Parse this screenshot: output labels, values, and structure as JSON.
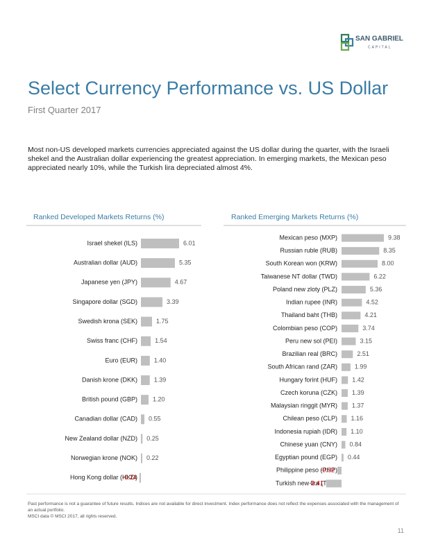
{
  "header": {
    "logo": {
      "name": "SAN GABRIEL",
      "tagline": "CAPITAL"
    },
    "title": "Select Currency Performance vs. US Dollar",
    "subtitle": "First Quarter 2017"
  },
  "intro": "Most non-US developed markets currencies appreciated against the US dollar during the quarter, with the Israeli shekel and the Australian dollar experiencing the greatest appreciation. In emerging markets, the Mexican peso appreciated nearly 10%, while the Turkish lira depreciated almost 4%.",
  "chart_data": [
    {
      "type": "bar",
      "orientation": "horizontal",
      "title": "Ranked Developed Markets Returns (%)",
      "color": "#bfbfbf",
      "negative_label_color": "#c00000",
      "categories": [
        "Israel shekel (ILS)",
        "Australian dollar (AUD)",
        "Japanese yen (JPY)",
        "Singapore dollar (SGD)",
        "Swedish krona (SEK)",
        "Swiss franc (CHF)",
        "Euro (EUR)",
        "Danish krone (DKK)",
        "British pound (GBP)",
        "Canadian dollar (CAD)",
        "New Zealand dollar (NZD)",
        "Norwegian krone (NOK)",
        "Hong Kong dollar (HKD)"
      ],
      "values": [
        6.01,
        5.35,
        4.67,
        3.39,
        1.75,
        1.54,
        1.4,
        1.39,
        1.2,
        0.55,
        0.25,
        0.22,
        -0.24
      ],
      "value_labels": [
        "6.01",
        "5.35",
        "4.67",
        "3.39",
        "1.75",
        "1.54",
        "1.40",
        "1.39",
        "1.20",
        "0.55",
        "0.25",
        "0.22",
        "-0.24"
      ]
    },
    {
      "type": "bar",
      "orientation": "horizontal",
      "title": "Ranked Emerging Markets Returns (%)",
      "color": "#bfbfbf",
      "negative_label_color": "#c00000",
      "categories": [
        "Mexican peso (MXP)",
        "Russian ruble (RUB)",
        "South Korean won (KRW)",
        "Taiwanese NT dollar (TWD)",
        "Poland new zloty (PLZ)",
        "Indian rupee (INR)",
        "Thailand baht (THB)",
        "Colombian peso (COP)",
        "Peru new sol (PEI)",
        "Brazilian real (BRC)",
        "South African rand (ZAR)",
        "Hungary forint (HUF)",
        "Czech koruna (CZK)",
        "Malaysian ringgit (MYR)",
        "Chilean peso (CLP)",
        "Indonesia rupiah (IDR)",
        "Chinese yuan (CNY)",
        "Egyptian pound (EGP)",
        "Philippine peso (PHP)",
        "Turkish new lira (TRY)"
      ],
      "values": [
        9.38,
        8.35,
        8.0,
        6.22,
        5.36,
        4.52,
        4.21,
        3.74,
        3.15,
        2.51,
        1.99,
        1.42,
        1.39,
        1.37,
        1.16,
        1.1,
        0.84,
        0.44,
        -0.92,
        -3.41
      ],
      "value_labels": [
        "9.38",
        "8.35",
        "8.00",
        "6.22",
        "5.36",
        "4.52",
        "4.21",
        "3.74",
        "3.15",
        "2.51",
        "1.99",
        "1.42",
        "1.39",
        "1.37",
        "1.16",
        "1.10",
        "0.84",
        "0.44",
        "-0.92",
        "-3.41"
      ]
    }
  ],
  "footnotes": [
    "Past performance is not a guarantee of future results. Indices are not available for direct investment. Index performance does not reflect the expenses associated with the management of an actual portfolio.",
    "MSCI data © MSCI 2017, all rights reserved."
  ],
  "page_number": "11"
}
